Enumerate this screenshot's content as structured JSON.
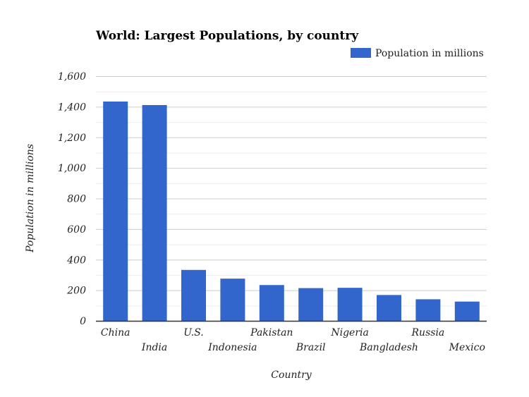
{
  "chart_data": {
    "type": "bar",
    "title": "World: Largest Populations, by country",
    "xlabel": "Country",
    "ylabel": "Population in millions",
    "categories": [
      "China",
      "India",
      "U.S.",
      "Indonesia",
      "Pakistan",
      "Brazil",
      "Nigeria",
      "Bangladesh",
      "Russia",
      "Mexico"
    ],
    "series": [
      {
        "name": "Population in millions",
        "values": [
          1434,
          1411,
          333,
          276,
          234,
          214,
          216,
          169,
          141,
          126
        ],
        "color": "#3366cc"
      }
    ],
    "ylim": [
      0,
      1600
    ],
    "yticks": [
      0,
      200,
      400,
      600,
      800,
      1000,
      1200,
      1400,
      1600
    ],
    "ytick_labels": [
      "0",
      "200",
      "400",
      "600",
      "800",
      "1,000",
      "1,200",
      "1,400",
      "1,600"
    ],
    "grid": true,
    "legend_position": "top-right"
  }
}
